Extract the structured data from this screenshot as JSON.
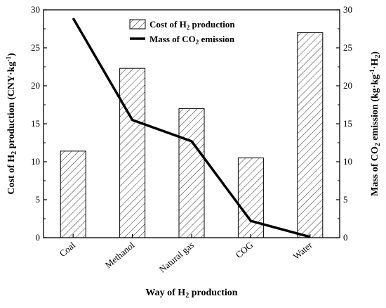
{
  "chart_data": {
    "type": "bar",
    "categories": [
      "Coal",
      "Methanol",
      "Natural gas",
      "COG",
      "Water"
    ],
    "series": [
      {
        "name": "Cost of H2 production",
        "legend_label": {
          "main": "Cost of H",
          "sub": "2",
          "rest": " production"
        },
        "type": "bar",
        "axis": "left",
        "pattern": "diagonal-hatch",
        "values": [
          11.4,
          22.3,
          17.0,
          10.5,
          27.0
        ]
      },
      {
        "name": "Mass of CO2 emission",
        "legend_label": {
          "main": "Mass of CO",
          "sub": "2",
          "rest": " emission"
        },
        "type": "line",
        "axis": "right",
        "color": "#000000",
        "values": [
          28.9,
          15.5,
          12.7,
          2.2,
          0.1
        ]
      }
    ],
    "ylim_left": [
      0,
      30
    ],
    "ylim_right": [
      0,
      30
    ],
    "yticks_left": [
      0,
      5,
      10,
      15,
      20,
      25,
      30
    ],
    "yticks_right": [
      0,
      5,
      10,
      15,
      20,
      25,
      30
    ],
    "xlabel": {
      "a": "Way of  H",
      "sub": "2",
      "b": " production"
    },
    "ylabel_left": {
      "a": "Cost of H",
      "sub": "2",
      "b": " production  (CNY·kg",
      "sup": "-1",
      "c": ")"
    },
    "ylabel_right": {
      "a": "Mass of CO",
      "sub": "2",
      "b": " emission  (kg·kg",
      "sup": "-1",
      "c": "·H",
      "sub2": "2",
      "d": ")"
    },
    "legend_position": "top-right",
    "grid": false
  }
}
